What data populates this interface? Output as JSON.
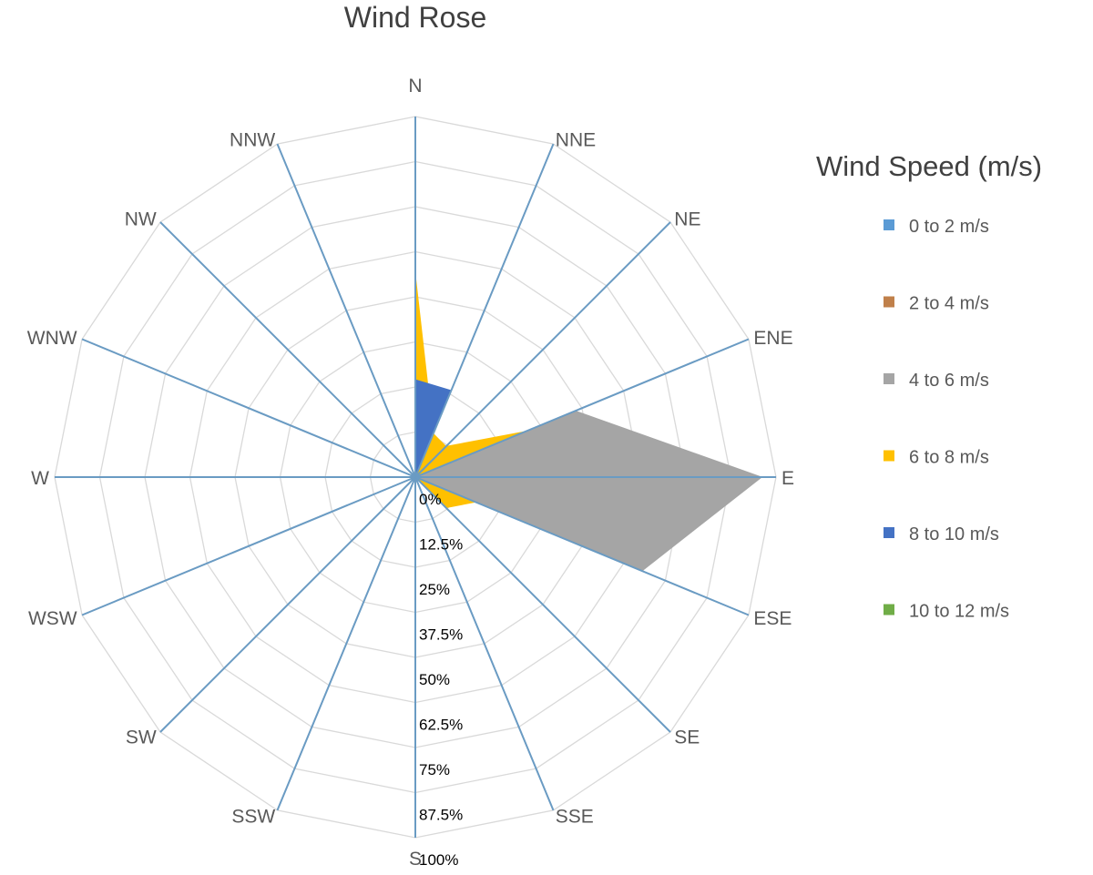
{
  "chart_data": {
    "type": "radar",
    "title": "Wind Rose",
    "directions": [
      "N",
      "NNE",
      "NE",
      "ENE",
      "E",
      "ESE",
      "SE",
      "SSE",
      "S",
      "SSW",
      "SW",
      "WSW",
      "W",
      "WNW",
      "NW",
      "NNW"
    ],
    "radial_ticks": [
      "0%",
      "12.5%",
      "25%",
      "37.5%",
      "50%",
      "62.5%",
      "75%",
      "87.5%",
      "100%"
    ],
    "radial_range": [
      0,
      100
    ],
    "grid": true,
    "legend": {
      "title": "Wind Speed (m/s)",
      "position": "right"
    },
    "series": [
      {
        "name": "0 to 2 m/s",
        "color": "#5b9bd5",
        "values": [
          0,
          0,
          0,
          0,
          0,
          0,
          0,
          0,
          0,
          0,
          0,
          0,
          0,
          0,
          0,
          0
        ]
      },
      {
        "name": "2 to 4 m/s",
        "color": "#c0804a",
        "values": [
          0,
          0,
          0,
          0,
          0,
          0,
          0,
          0,
          0,
          0,
          0,
          0,
          3.5,
          0,
          0,
          0
        ]
      },
      {
        "name": "4 to 6 m/s",
        "color": "#a5a5a5",
        "values": [
          0,
          0,
          0,
          48,
          96,
          68,
          0,
          0,
          0,
          0,
          0,
          0,
          0,
          0,
          0,
          0
        ]
      },
      {
        "name": "6 to 8 m/s",
        "color": "#ffc000",
        "values": [
          56,
          13,
          12,
          33,
          0,
          18,
          12,
          0,
          0,
          0,
          0,
          0,
          0,
          0,
          0,
          0
        ]
      },
      {
        "name": "8 to 10 m/s",
        "color": "#4472c4",
        "values": [
          27,
          26,
          0,
          0,
          0,
          0,
          0,
          0,
          0,
          0,
          0,
          0,
          0,
          0,
          0,
          0
        ]
      },
      {
        "name": "10 to 12 m/s",
        "color": "#70ad47",
        "values": [
          0,
          0,
          0,
          0,
          0,
          0,
          0,
          0,
          0,
          0,
          0,
          0,
          0,
          0,
          0,
          0
        ]
      }
    ]
  }
}
